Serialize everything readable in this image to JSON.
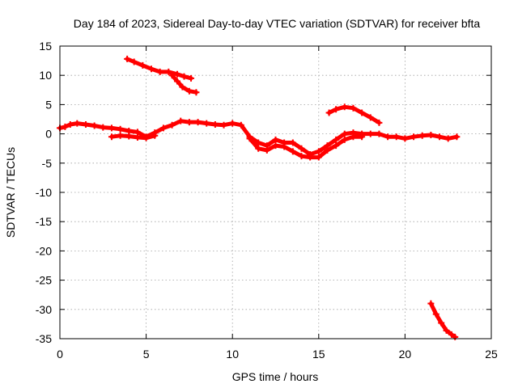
{
  "chart_data": {
    "type": "scatter",
    "title": "Day 184 of 2023, Sidereal Day-to-day VTEC variation (SDTVAR) for receiver bfta",
    "xlabel": "GPS time / hours",
    "ylabel": "SDTVAR / TECUs",
    "xlim": [
      0,
      25
    ],
    "ylim": [
      -35,
      15
    ],
    "xticks": [
      0,
      5,
      10,
      15,
      20,
      25
    ],
    "yticks": [
      15,
      10,
      5,
      0,
      -5,
      -10,
      -15,
      -20,
      -25,
      -30,
      -35
    ],
    "grid": true,
    "marker": "plus",
    "color": "#ff0000",
    "series": [
      {
        "name": "main-band",
        "points": [
          [
            0.0,
            1.0
          ],
          [
            0.3,
            1.2
          ],
          [
            0.6,
            1.6
          ],
          [
            1.0,
            1.8
          ],
          [
            1.5,
            1.6
          ],
          [
            2.0,
            1.4
          ],
          [
            2.5,
            1.1
          ],
          [
            3.0,
            1.0
          ],
          [
            3.5,
            0.8
          ],
          [
            4.0,
            0.5
          ],
          [
            4.5,
            0.3
          ],
          [
            5.0,
            -0.5
          ],
          [
            5.5,
            0.2
          ],
          [
            6.0,
            1.0
          ],
          [
            6.5,
            1.5
          ],
          [
            7.0,
            2.2
          ],
          [
            7.5,
            2.0
          ],
          [
            8.0,
            2.0
          ],
          [
            8.5,
            1.8
          ],
          [
            9.0,
            1.6
          ],
          [
            9.5,
            1.5
          ],
          [
            10.0,
            1.8
          ],
          [
            10.5,
            1.5
          ],
          [
            11.0,
            -0.5
          ],
          [
            11.5,
            -1.5
          ],
          [
            12.0,
            -2.0
          ],
          [
            12.5,
            -1.0
          ],
          [
            13.0,
            -1.5
          ],
          [
            13.5,
            -1.5
          ],
          [
            14.0,
            -2.5
          ],
          [
            14.5,
            -3.5
          ],
          [
            15.0,
            -3.0
          ],
          [
            15.5,
            -2.0
          ],
          [
            16.0,
            -1.0
          ],
          [
            16.5,
            0.0
          ],
          [
            17.0,
            0.2
          ],
          [
            17.5,
            0.0
          ],
          [
            18.0,
            0.0
          ],
          [
            18.5,
            0.0
          ],
          [
            19.0,
            -0.5
          ],
          [
            19.5,
            -0.5
          ],
          [
            20.0,
            -0.8
          ],
          [
            20.5,
            -0.5
          ],
          [
            21.0,
            -0.3
          ],
          [
            21.5,
            -0.2
          ],
          [
            22.0,
            -0.5
          ],
          [
            22.5,
            -0.8
          ],
          [
            23.0,
            -0.5
          ]
        ]
      },
      {
        "name": "low-branch-morning",
        "points": [
          [
            3.0,
            -0.5
          ],
          [
            3.5,
            -0.3
          ],
          [
            4.0,
            -0.4
          ],
          [
            4.5,
            -0.6
          ],
          [
            5.0,
            -0.7
          ],
          [
            5.5,
            -0.3
          ]
        ]
      },
      {
        "name": "low-branch-midday",
        "points": [
          [
            11.0,
            -0.8
          ],
          [
            11.5,
            -2.5
          ],
          [
            12.0,
            -2.8
          ],
          [
            12.5,
            -2.0
          ],
          [
            13.0,
            -2.2
          ],
          [
            13.5,
            -3.0
          ],
          [
            14.0,
            -3.8
          ],
          [
            14.5,
            -4.0
          ],
          [
            15.0,
            -4.0
          ],
          [
            15.5,
            -2.8
          ],
          [
            16.0,
            -2.0
          ],
          [
            16.5,
            -1.0
          ],
          [
            17.0,
            -0.5
          ],
          [
            17.5,
            -0.5
          ]
        ]
      },
      {
        "name": "upper-arc-morning",
        "points": [
          [
            3.9,
            12.8
          ],
          [
            4.3,
            12.3
          ],
          [
            4.8,
            11.7
          ],
          [
            5.3,
            11.1
          ],
          [
            5.8,
            10.6
          ],
          [
            6.3,
            10.6
          ],
          [
            6.8,
            10.2
          ],
          [
            7.2,
            9.8
          ],
          [
            7.6,
            9.5
          ]
        ]
      },
      {
        "name": "upper-arc-dip",
        "points": [
          [
            6.5,
            10.0
          ],
          [
            6.8,
            9.0
          ],
          [
            7.1,
            8.0
          ],
          [
            7.5,
            7.3
          ],
          [
            7.9,
            7.1
          ]
        ]
      },
      {
        "name": "upper-arc-afternoon",
        "points": [
          [
            15.6,
            3.6
          ],
          [
            16.0,
            4.2
          ],
          [
            16.5,
            4.6
          ],
          [
            17.0,
            4.4
          ],
          [
            17.5,
            3.6
          ],
          [
            18.0,
            2.8
          ],
          [
            18.5,
            1.9
          ]
        ]
      },
      {
        "name": "lower-tail",
        "points": [
          [
            21.5,
            -29.0
          ],
          [
            21.8,
            -30.8
          ],
          [
            22.1,
            -32.3
          ],
          [
            22.4,
            -33.6
          ],
          [
            22.7,
            -34.3
          ],
          [
            22.9,
            -34.7
          ]
        ]
      }
    ]
  }
}
